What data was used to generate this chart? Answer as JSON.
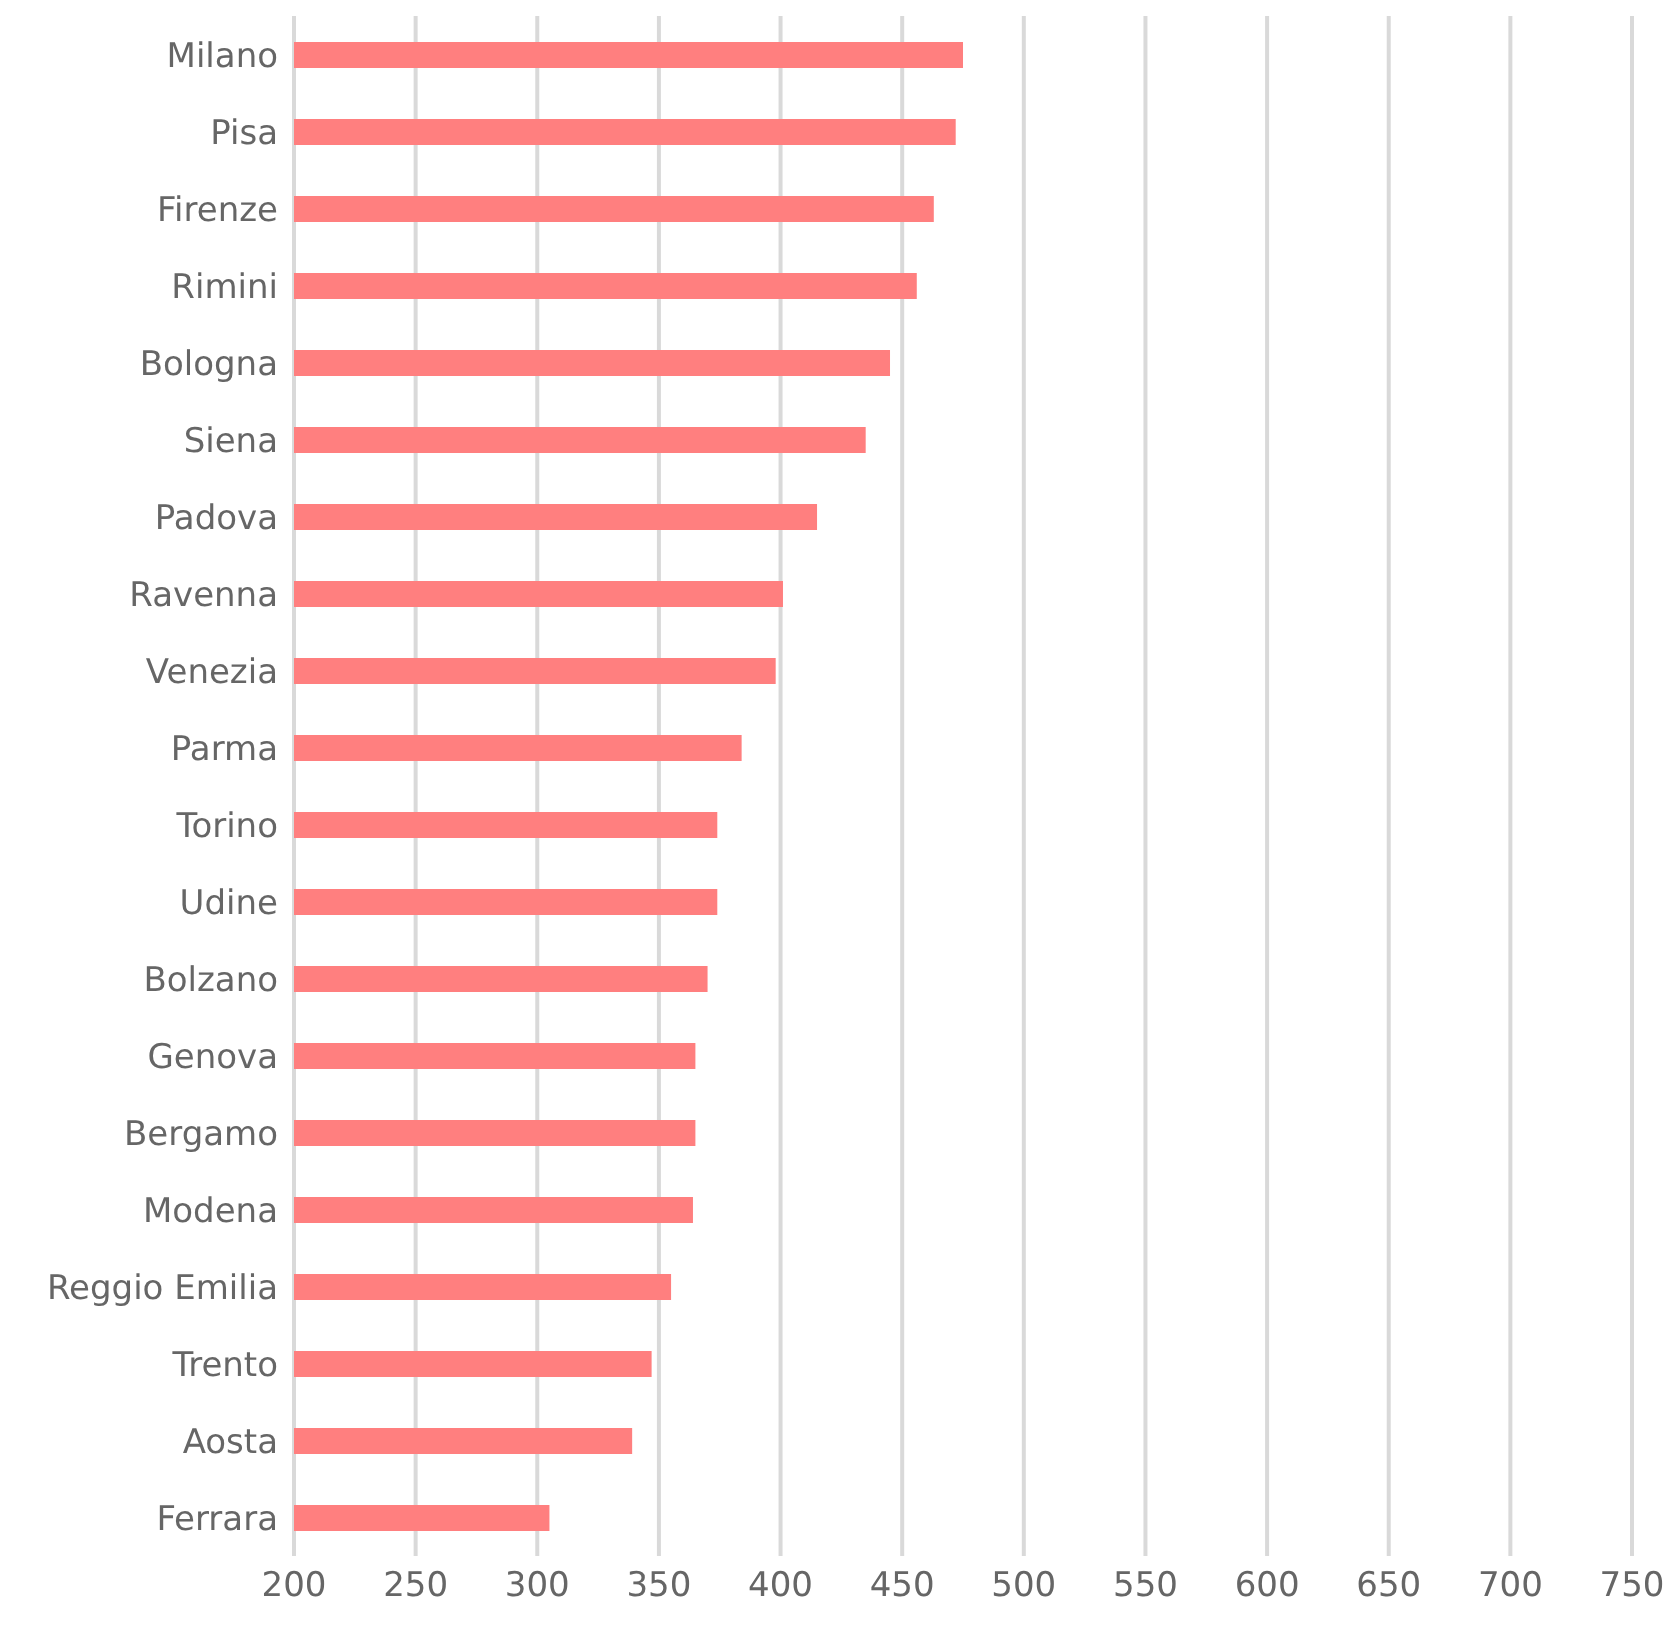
{
  "chart_data": {
    "type": "bar",
    "orientation": "horizontal",
    "categories": [
      "Milano",
      "Pisa",
      "Firenze",
      "Rimini",
      "Bologna",
      "Siena",
      "Padova",
      "Ravenna",
      "Venezia",
      "Parma",
      "Torino",
      "Udine",
      "Bolzano",
      "Genova",
      "Bergamo",
      "Modena",
      "Reggio Emilia",
      "Trento",
      "Aosta",
      "Ferrara"
    ],
    "values": [
      475,
      472,
      463,
      456,
      445,
      435,
      415,
      401,
      398,
      384,
      374,
      374,
      370,
      365,
      365,
      364,
      355,
      347,
      339,
      305
    ],
    "color": "#ff7f7f",
    "xlim": [
      200,
      750
    ],
    "xticks": [
      200,
      250,
      300,
      350,
      400,
      450,
      500,
      550,
      600,
      650,
      700,
      750
    ],
    "grid": "x"
  }
}
